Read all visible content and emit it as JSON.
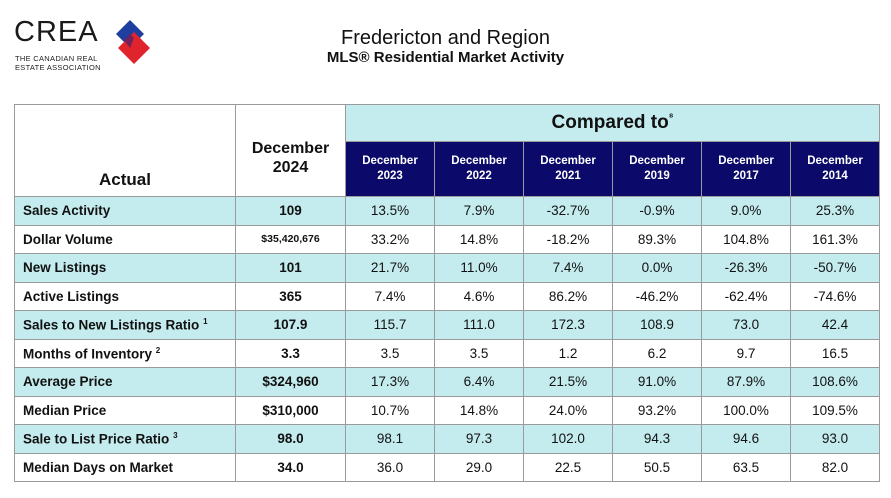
{
  "logo": {
    "wordmark": "CREA",
    "line1": "THE CANADIAN REAL",
    "line2": "ESTATE ASSOCIATION"
  },
  "title": {
    "main": "Fredericton and Region",
    "sub": "MLS® Residential Market Activity"
  },
  "table": {
    "actual_header": "Actual",
    "current_period": {
      "month": "December",
      "year": "2024"
    },
    "compared_label": "Compared to",
    "compared_note": "⁸",
    "columns": [
      {
        "month": "December",
        "year": "2023"
      },
      {
        "month": "December",
        "year": "2022"
      },
      {
        "month": "December",
        "year": "2021"
      },
      {
        "month": "December",
        "year": "2019"
      },
      {
        "month": "December",
        "year": "2017"
      },
      {
        "month": "December",
        "year": "2014"
      }
    ],
    "rows": [
      {
        "label": "Sales Activity",
        "note": "",
        "value": "109",
        "comp": [
          "13.5%",
          "7.9%",
          "-32.7%",
          "-0.9%",
          "9.0%",
          "25.3%"
        ]
      },
      {
        "label": "Dollar Volume",
        "note": "",
        "value": "$35,420,676",
        "comp": [
          "33.2%",
          "14.8%",
          "-18.2%",
          "89.3%",
          "104.8%",
          "161.3%"
        ]
      },
      {
        "label": "New Listings",
        "note": "",
        "value": "101",
        "comp": [
          "21.7%",
          "11.0%",
          "7.4%",
          "0.0%",
          "-26.3%",
          "-50.7%"
        ]
      },
      {
        "label": "Active Listings",
        "note": "",
        "value": "365",
        "comp": [
          "7.4%",
          "4.6%",
          "86.2%",
          "-46.2%",
          "-62.4%",
          "-74.6%"
        ]
      },
      {
        "label": "Sales to New Listings Ratio",
        "note": "1",
        "value": "107.9",
        "comp": [
          "115.7",
          "111.0",
          "172.3",
          "108.9",
          "73.0",
          "42.4"
        ]
      },
      {
        "label": "Months of Inventory",
        "note": "2",
        "value": "3.3",
        "comp": [
          "3.5",
          "3.5",
          "1.2",
          "6.2",
          "9.7",
          "16.5"
        ]
      },
      {
        "label": "Average Price",
        "note": "",
        "value": "$324,960",
        "comp": [
          "17.3%",
          "6.4%",
          "21.5%",
          "91.0%",
          "87.9%",
          "108.6%"
        ]
      },
      {
        "label": "Median Price",
        "note": "",
        "value": "$310,000",
        "comp": [
          "10.7%",
          "14.8%",
          "24.0%",
          "93.2%",
          "100.0%",
          "109.5%"
        ]
      },
      {
        "label": "Sale to List Price Ratio",
        "note": "3",
        "value": "98.0",
        "comp": [
          "98.1",
          "97.3",
          "102.0",
          "94.3",
          "94.6",
          "93.0"
        ]
      },
      {
        "label": "Median Days on Market",
        "note": "",
        "value": "34.0",
        "comp": [
          "36.0",
          "29.0",
          "22.5",
          "50.5",
          "63.5",
          "82.0"
        ]
      }
    ]
  },
  "colors": {
    "row_highlight": "#c4ecee",
    "header_navy": "#0b0a6a",
    "logo_red": "#e0242e",
    "logo_blue": "#1f3fa0"
  }
}
